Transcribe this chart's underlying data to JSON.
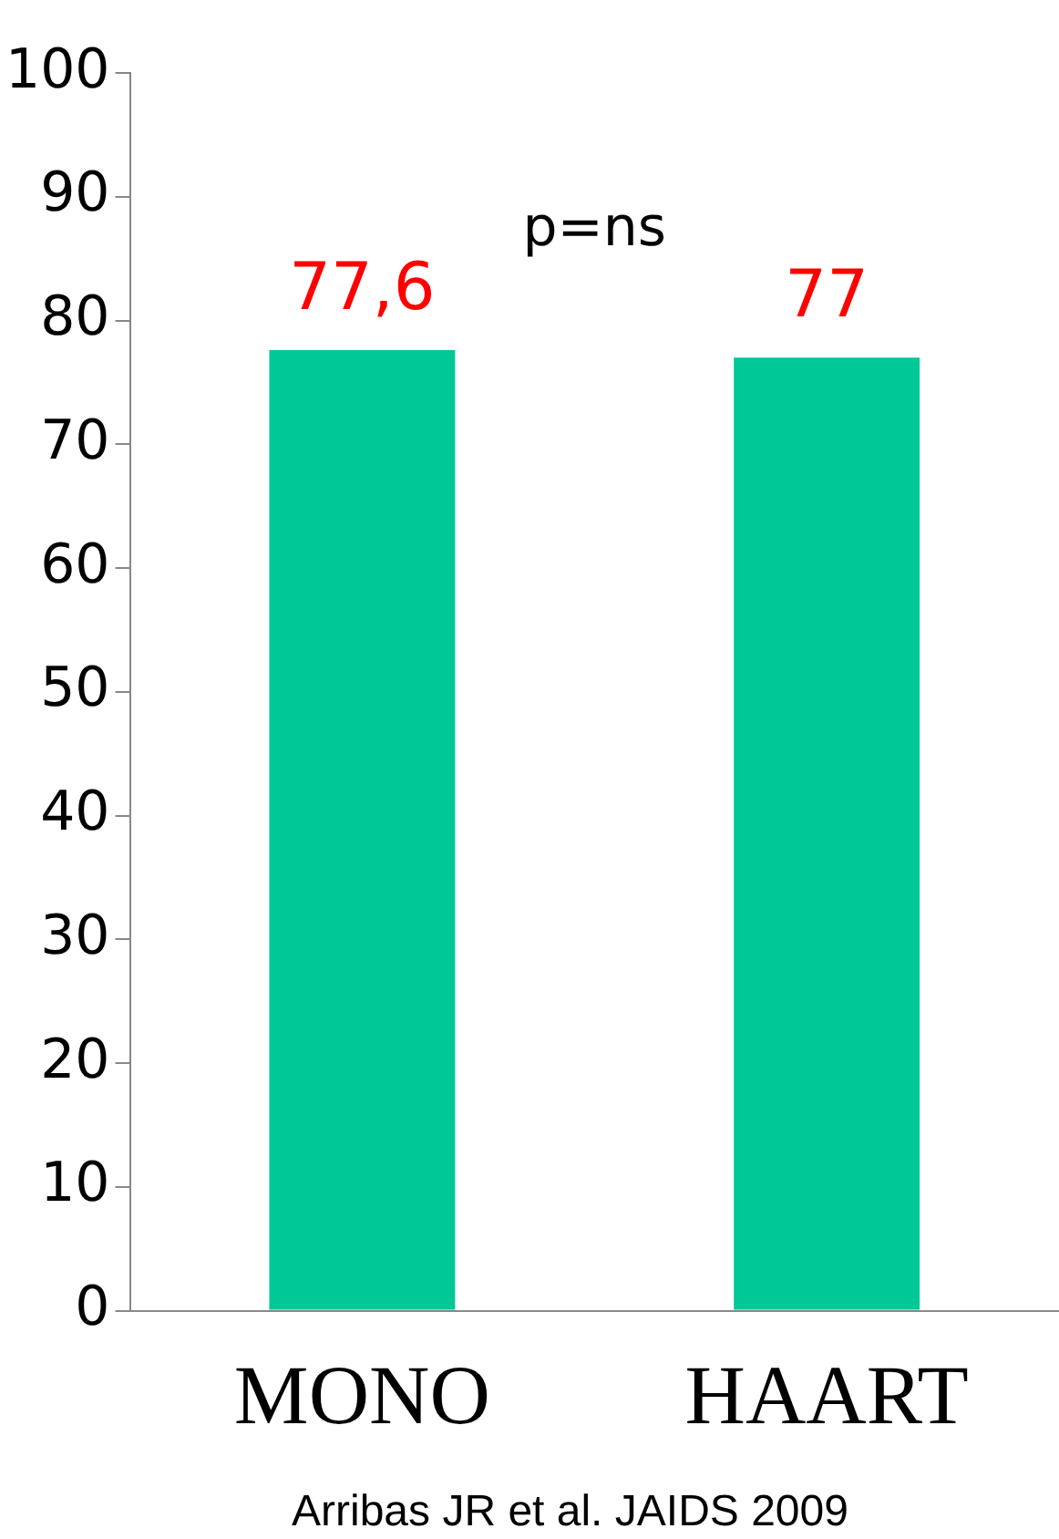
{
  "chart_data": {
    "type": "bar",
    "categories": [
      "MONO",
      "HAART"
    ],
    "values": [
      77.6,
      77
    ],
    "color": "#00c896",
    "value_labels": [
      "77,6",
      "77"
    ],
    "ylim": [
      0,
      100
    ],
    "yticks": [
      0,
      10,
      20,
      30,
      40,
      50,
      60,
      70,
      80,
      90,
      100
    ],
    "grid": false,
    "legend": false,
    "annotations": [
      "p=ns",
      "Arribas JR et al. JAIDS 2009"
    ]
  }
}
